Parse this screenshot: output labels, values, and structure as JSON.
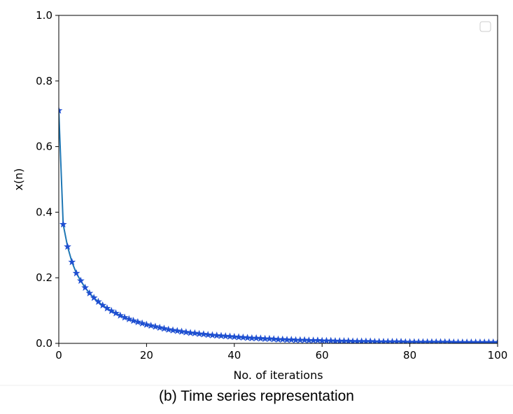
{
  "chart_data": {
    "type": "line",
    "xlabel": "No. of iterations",
    "ylabel": "x(n)",
    "xlim": [
      0,
      100
    ],
    "ylim": [
      0.0,
      1.0
    ],
    "xticks": [
      "0",
      "20",
      "40",
      "60",
      "80",
      "100"
    ],
    "yticks": [
      "0.0",
      "0.2",
      "0.4",
      "0.6",
      "0.8",
      "1.0"
    ],
    "grid": false,
    "legend": {
      "placement": "top-right",
      "entries": []
    },
    "series": [
      {
        "color": "#1f77b4",
        "marker": "star",
        "marker_color": "#1f4fd1",
        "x": [
          0,
          1,
          2,
          3,
          4,
          5,
          6,
          7,
          8,
          9,
          10,
          11,
          12,
          13,
          14,
          15,
          16,
          17,
          18,
          19,
          20,
          21,
          22,
          23,
          24,
          25,
          26,
          27,
          28,
          29,
          30,
          31,
          32,
          33,
          34,
          35,
          36,
          37,
          38,
          39,
          40,
          41,
          42,
          43,
          44,
          45,
          46,
          47,
          48,
          49,
          50,
          51,
          52,
          53,
          54,
          55,
          56,
          57,
          58,
          59,
          60,
          61,
          62,
          63,
          64,
          65,
          66,
          67,
          68,
          69,
          70,
          71,
          72,
          73,
          74,
          75,
          76,
          77,
          78,
          79,
          80,
          81,
          82,
          83,
          84,
          85,
          86,
          87,
          88,
          89,
          90,
          91,
          92,
          93,
          94,
          95,
          96,
          97,
          98,
          99,
          100
        ],
        "y": [
          0.71,
          0.363,
          0.295,
          0.248,
          0.214,
          0.191,
          0.17,
          0.153,
          0.139,
          0.127,
          0.116,
          0.107,
          0.099,
          0.092,
          0.085,
          0.079,
          0.074,
          0.069,
          0.065,
          0.061,
          0.057,
          0.054,
          0.051,
          0.048,
          0.045,
          0.042,
          0.04,
          0.038,
          0.036,
          0.034,
          0.032,
          0.031,
          0.029,
          0.028,
          0.026,
          0.025,
          0.024,
          0.023,
          0.022,
          0.021,
          0.02,
          0.019,
          0.018,
          0.017,
          0.016,
          0.016,
          0.015,
          0.014,
          0.014,
          0.013,
          0.012,
          0.012,
          0.011,
          0.011,
          0.01,
          0.01,
          0.01,
          0.009,
          0.009,
          0.009,
          0.008,
          0.008,
          0.008,
          0.007,
          0.007,
          0.007,
          0.007,
          0.006,
          0.006,
          0.006,
          0.006,
          0.006,
          0.005,
          0.005,
          0.005,
          0.005,
          0.005,
          0.005,
          0.005,
          0.004,
          0.004,
          0.004,
          0.004,
          0.004,
          0.004,
          0.004,
          0.004,
          0.004,
          0.004,
          0.004,
          0.003,
          0.003,
          0.003,
          0.003,
          0.003,
          0.003,
          0.003,
          0.003,
          0.003,
          0.003,
          0.003
        ]
      }
    ]
  },
  "caption": "(b) Time series representation"
}
